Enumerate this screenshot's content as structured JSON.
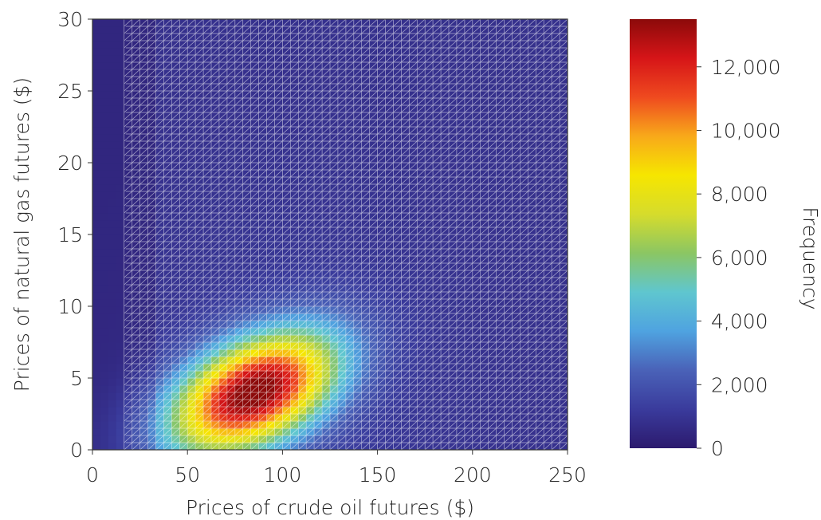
{
  "chart_data": {
    "type": "heatmap",
    "xlabel": "Prices of crude oil futures ($)",
    "ylabel": "Prices of natural gas futures ($)",
    "colorbar_label": "Frequency",
    "xlim": [
      0,
      250
    ],
    "ylim": [
      0,
      30
    ],
    "x_ticks": [
      0,
      50,
      100,
      150,
      200,
      250
    ],
    "x_tick_labels": [
      "0",
      "50",
      "100",
      "150",
      "200",
      "250"
    ],
    "y_ticks": [
      0,
      5,
      10,
      15,
      20,
      25,
      30
    ],
    "y_tick_labels": [
      "0",
      "5",
      "10",
      "15",
      "20",
      "25",
      "30"
    ],
    "colorbar_range": [
      0,
      13500
    ],
    "colorbar_ticks": [
      0,
      2000,
      4000,
      6000,
      8000,
      10000,
      12000
    ],
    "colorbar_tick_labels": [
      "0",
      "2,000",
      "4,000",
      "6,000",
      "8,000",
      "10,000",
      "12,000"
    ],
    "colorscale": [
      "#2c1a6e",
      "#3a3b9c",
      "#4a62b8",
      "#4fa3e0",
      "#5fc6cf",
      "#8bc663",
      "#d6dc2c",
      "#f6e600",
      "#f8a91a",
      "#ef4a1f",
      "#d61518",
      "#8c0a0a"
    ],
    "grid_color": "#ffffff",
    "grid_cells": {
      "x": 60,
      "y": 60
    },
    "peak": {
      "x": 85,
      "y": 4,
      "frequency": 13000
    },
    "background_frequency": 800,
    "low_region_x_max": 35
  }
}
